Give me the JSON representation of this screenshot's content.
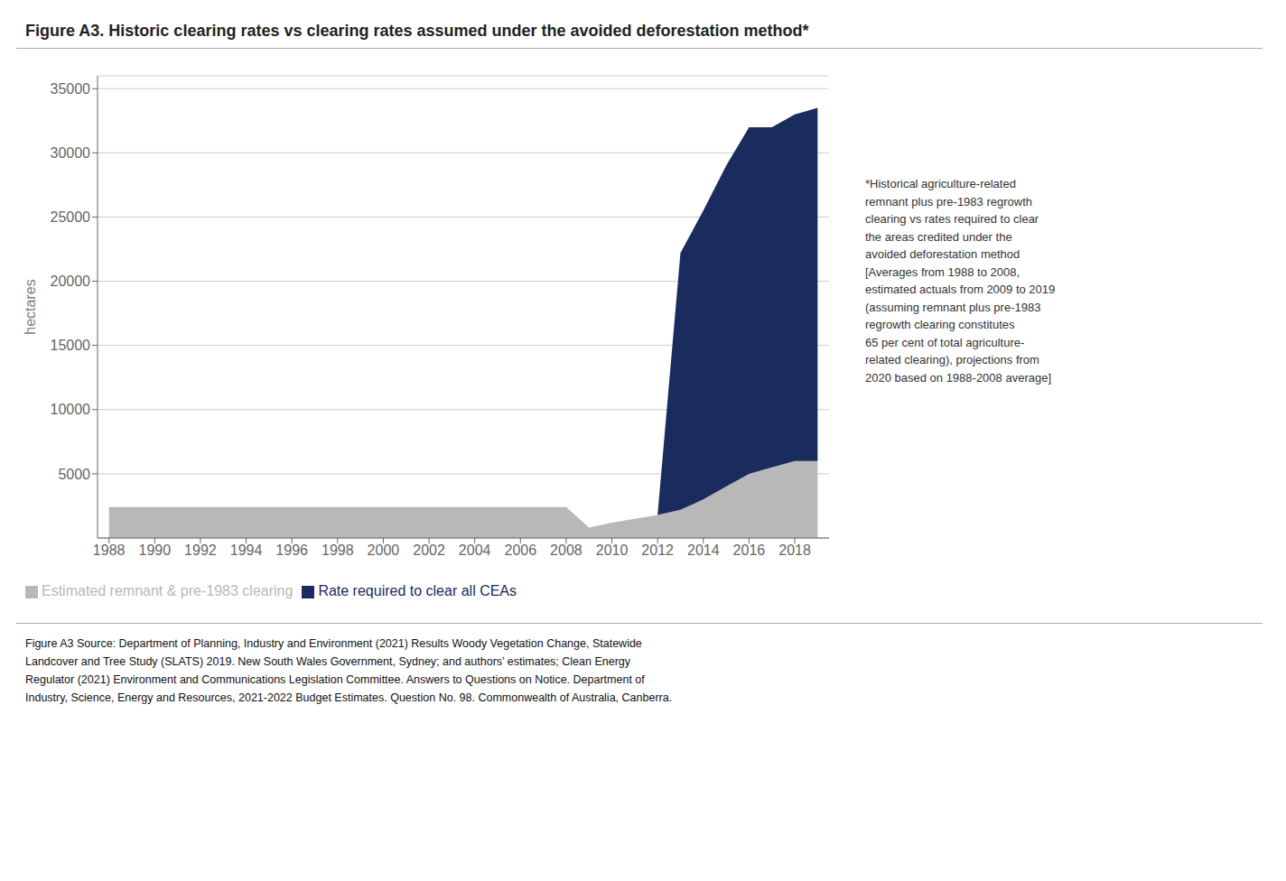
{
  "chart_data": {
    "type": "area",
    "stacked": true,
    "title": "Figure A3. Historic clearing rates vs clearing rates assumed under the avoided deforestation method*",
    "y_label": "hectares",
    "x": [
      1988,
      1989,
      1990,
      1991,
      1992,
      1993,
      1994,
      1995,
      1996,
      1997,
      1998,
      1999,
      2000,
      2001,
      2002,
      2003,
      2004,
      2005,
      2006,
      2007,
      2008,
      2009,
      2010,
      2011,
      2012,
      2013,
      2014,
      2015,
      2016,
      2017,
      2018,
      2019
    ],
    "series": [
      {
        "name": "Estimated remnant & pre-1983 clearing",
        "color": "#b8b8b8",
        "values": [
          2400,
          2400,
          2400,
          2400,
          2400,
          2400,
          2400,
          2400,
          2400,
          2400,
          2400,
          2400,
          2400,
          2400,
          2400,
          2400,
          2400,
          2400,
          2400,
          2400,
          2400,
          800,
          1200,
          1500,
          1800,
          2200,
          3000,
          4000,
          5000,
          5500,
          6000,
          6000
        ]
      },
      {
        "name": "Rate required to clear all CEAs",
        "color": "#1a2b5e",
        "values": [
          0,
          0,
          0,
          0,
          0,
          0,
          0,
          0,
          0,
          0,
          0,
          0,
          0,
          0,
          0,
          0,
          0,
          0,
          0,
          0,
          0,
          0,
          0,
          0,
          0,
          20000,
          22500,
          25000,
          27000,
          26500,
          27000,
          27500
        ]
      }
    ],
    "xlim": [
      1987.5,
      2019.5
    ],
    "xticks": [
      1988,
      1990,
      1992,
      1994,
      1996,
      1998,
      2000,
      2002,
      2004,
      2006,
      2008,
      2010,
      2012,
      2014,
      2016,
      2018
    ],
    "ylim": [
      0,
      36000
    ],
    "yticks": [
      5000,
      10000,
      15000,
      20000,
      25000,
      30000,
      35000
    ],
    "grid": true,
    "legend": "bottom",
    "annotation": "*Historical agriculture-related\nremnant plus pre-1983 regrowth\nclearing vs rates required to clear\nthe areas credited under the\navoided deforestation method\n[Averages from 1988 to 2008,\nestimated actuals from 2009 to 2019\n(assuming remnant plus pre-1983\nregrowth clearing constitutes\n65 per cent of total agriculture-\nrelated clearing), projections from\n2020 based on 1988-2008 average]",
    "source": [
      "Figure A3 Source: Department of Planning, Industry and Environment (2021) Results Woody Vegetation Change, Statewide",
      "Landcover and Tree Study (SLATS) 2019. New South Wales Government, Sydney; and authors’ estimates; Clean Energy",
      "Regulator (2021) Environment and Communications Legislation Committee. Answers to Questions on Notice. Department of",
      "Industry, Science, Energy and Resources, 2021-2022 Budget Estimates. Question No. 98. Commonwealth of Australia, Canberra."
    ]
  }
}
